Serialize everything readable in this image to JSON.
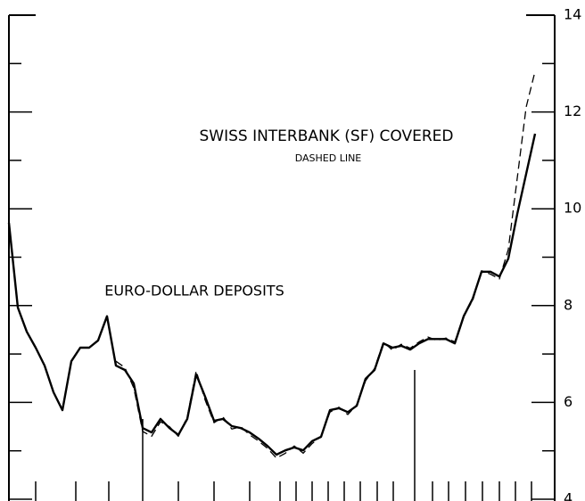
{
  "chart_data": {
    "type": "line",
    "annotations": [
      "SWISS INTERBANK (SF) COVERED",
      "DASHED LINE",
      "EURO-DOLLAR DEPOSITS"
    ],
    "categories": [
      null,
      null,
      null,
      null,
      null,
      null,
      null,
      null,
      null,
      null,
      null,
      null,
      null,
      null,
      null,
      null,
      null,
      null,
      null,
      null,
      null,
      null,
      null,
      null,
      null,
      null,
      null,
      null,
      null,
      null,
      null,
      null,
      null,
      null,
      null,
      null,
      null,
      null,
      null,
      null,
      null,
      null,
      null,
      null,
      null,
      null,
      null,
      null,
      null,
      null,
      null,
      null,
      null,
      null,
      null,
      null,
      null,
      null,
      null,
      null
    ],
    "series": [
      {
        "name": "EURO-DOLLAR DEPOSITS",
        "color": "#000000",
        "dash": false,
        "values": [
          9.71,
          7.96,
          7.46,
          7.13,
          6.76,
          6.21,
          5.84,
          6.85,
          7.13,
          7.13,
          7.28,
          7.78,
          6.76,
          6.67,
          6.39,
          5.47,
          5.38,
          5.66,
          5.47,
          5.33,
          5.66,
          6.58,
          6.12,
          5.62,
          5.66,
          5.51,
          5.47,
          5.38,
          5.25,
          5.1,
          4.92,
          5.01,
          5.07,
          5.01,
          5.2,
          5.29,
          5.84,
          5.88,
          5.8,
          5.93,
          6.49,
          6.67,
          7.22,
          7.13,
          7.17,
          7.09,
          7.22,
          7.31,
          7.31,
          7.31,
          7.22,
          7.78,
          8.14,
          8.7,
          8.7,
          8.6,
          8.97,
          9.89,
          10.72,
          11.55
        ]
      },
      {
        "name": "SWISS INTERBANK (SF) COVERED",
        "color": "#000000",
        "dash": true,
        "values": [
          null,
          null,
          null,
          null,
          null,
          null,
          null,
          null,
          null,
          null,
          null,
          null,
          6.85,
          6.72,
          6.3,
          5.4,
          5.3,
          5.6,
          5.5,
          5.3,
          5.7,
          6.65,
          6.05,
          5.58,
          5.7,
          5.45,
          5.5,
          5.33,
          5.2,
          5.05,
          4.85,
          4.95,
          5.1,
          4.95,
          5.15,
          5.3,
          5.8,
          5.9,
          5.75,
          5.95,
          6.45,
          6.7,
          7.25,
          7.08,
          7.2,
          7.12,
          7.25,
          7.35,
          7.28,
          7.33,
          7.25,
          7.8,
          8.1,
          8.72,
          8.65,
          8.55,
          9.16,
          10.63,
          12.1,
          12.84
        ]
      }
    ],
    "ylim": [
      4,
      14
    ],
    "yticks": [
      4,
      6,
      8,
      10,
      12,
      14
    ],
    "minor_yticks": [
      5,
      7,
      9,
      11,
      13
    ]
  }
}
